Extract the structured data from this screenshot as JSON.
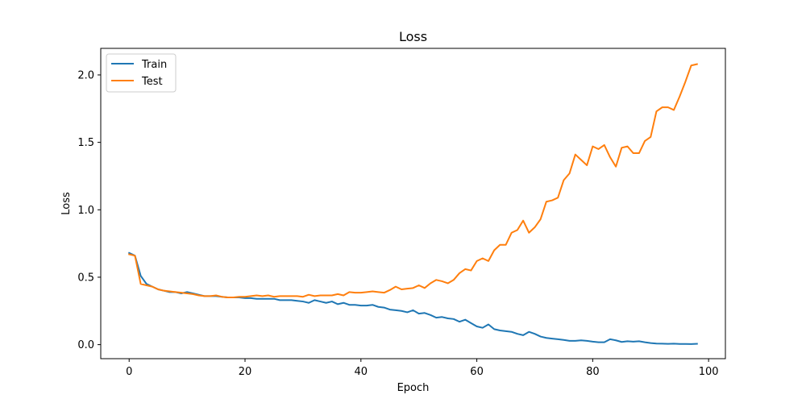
{
  "chart_data": {
    "type": "line",
    "title": "Loss",
    "xlabel": "Epoch",
    "ylabel": "Loss",
    "xlim": [
      -4.9,
      102.9
    ],
    "ylim": [
      -0.104,
      2.197
    ],
    "xticks": [
      0,
      20,
      40,
      60,
      80,
      100
    ],
    "yticks": [
      0.0,
      0.5,
      1.0,
      1.5,
      2.0
    ],
    "xtick_labels": [
      "0",
      "20",
      "40",
      "60",
      "80",
      "100"
    ],
    "ytick_labels": [
      "0.0",
      "0.5",
      "1.0",
      "1.5",
      "2.0"
    ],
    "grid": false,
    "legend_position": "upper-left",
    "series": [
      {
        "name": "Train",
        "color": "#1f77b4",
        "x": [
          0,
          1,
          2,
          3,
          4,
          5,
          6,
          7,
          8,
          9,
          10,
          11,
          12,
          13,
          14,
          15,
          16,
          17,
          18,
          19,
          20,
          21,
          22,
          23,
          24,
          25,
          26,
          27,
          28,
          29,
          30,
          31,
          32,
          33,
          34,
          35,
          36,
          37,
          38,
          39,
          40,
          41,
          42,
          43,
          44,
          45,
          46,
          47,
          48,
          49,
          50,
          51,
          52,
          53,
          54,
          55,
          56,
          57,
          58,
          59,
          60,
          61,
          62,
          63,
          64,
          65,
          66,
          67,
          68,
          69,
          70,
          71,
          72,
          73,
          74,
          75,
          76,
          77,
          78,
          79,
          80,
          81,
          82,
          83,
          84,
          85,
          86,
          87,
          88,
          89,
          90,
          91,
          92,
          93,
          94,
          95,
          96,
          97,
          98
        ],
        "values": [
          0.68,
          0.66,
          0.51,
          0.45,
          0.43,
          0.41,
          0.4,
          0.39,
          0.39,
          0.38,
          0.39,
          0.38,
          0.37,
          0.36,
          0.36,
          0.36,
          0.355,
          0.35,
          0.35,
          0.35,
          0.345,
          0.345,
          0.34,
          0.34,
          0.34,
          0.34,
          0.33,
          0.33,
          0.33,
          0.325,
          0.32,
          0.31,
          0.33,
          0.32,
          0.31,
          0.32,
          0.3,
          0.31,
          0.295,
          0.295,
          0.29,
          0.29,
          0.295,
          0.28,
          0.275,
          0.26,
          0.255,
          0.25,
          0.24,
          0.255,
          0.23,
          0.235,
          0.22,
          0.2,
          0.205,
          0.195,
          0.19,
          0.17,
          0.185,
          0.16,
          0.135,
          0.125,
          0.15,
          0.115,
          0.105,
          0.1,
          0.095,
          0.08,
          0.07,
          0.095,
          0.08,
          0.06,
          0.05,
          0.045,
          0.04,
          0.035,
          0.028,
          0.028,
          0.032,
          0.028,
          0.022,
          0.018,
          0.018,
          0.04,
          0.032,
          0.02,
          0.025,
          0.022,
          0.025,
          0.018,
          0.012,
          0.008,
          0.007,
          0.006,
          0.007,
          0.005,
          0.005,
          0.004,
          0.006
        ]
      },
      {
        "name": "Test",
        "color": "#ff7f0e",
        "x": [
          0,
          1,
          2,
          3,
          4,
          5,
          6,
          7,
          8,
          9,
          10,
          11,
          12,
          13,
          14,
          15,
          16,
          17,
          18,
          19,
          20,
          21,
          22,
          23,
          24,
          25,
          26,
          27,
          28,
          29,
          30,
          31,
          32,
          33,
          34,
          35,
          36,
          37,
          38,
          39,
          40,
          41,
          42,
          43,
          44,
          45,
          46,
          47,
          48,
          49,
          50,
          51,
          52,
          53,
          54,
          55,
          56,
          57,
          58,
          59,
          60,
          61,
          62,
          63,
          64,
          65,
          66,
          67,
          68,
          69,
          70,
          71,
          72,
          73,
          74,
          75,
          76,
          77,
          78,
          79,
          80,
          81,
          82,
          83,
          84,
          85,
          86,
          87,
          88,
          89,
          90,
          91,
          92,
          93,
          94,
          95,
          96,
          97,
          98
        ],
        "values": [
          0.67,
          0.66,
          0.45,
          0.44,
          0.43,
          0.41,
          0.4,
          0.395,
          0.39,
          0.385,
          0.38,
          0.375,
          0.365,
          0.36,
          0.36,
          0.365,
          0.355,
          0.35,
          0.35,
          0.355,
          0.355,
          0.36,
          0.365,
          0.36,
          0.365,
          0.355,
          0.36,
          0.36,
          0.36,
          0.36,
          0.355,
          0.37,
          0.36,
          0.365,
          0.365,
          0.365,
          0.375,
          0.365,
          0.39,
          0.385,
          0.385,
          0.39,
          0.395,
          0.39,
          0.385,
          0.405,
          0.43,
          0.41,
          0.415,
          0.42,
          0.44,
          0.42,
          0.455,
          0.48,
          0.47,
          0.455,
          0.48,
          0.53,
          0.56,
          0.55,
          0.62,
          0.64,
          0.62,
          0.7,
          0.74,
          0.74,
          0.83,
          0.85,
          0.92,
          0.83,
          0.87,
          0.93,
          1.06,
          1.07,
          1.09,
          1.22,
          1.27,
          1.41,
          1.37,
          1.33,
          1.47,
          1.45,
          1.48,
          1.39,
          1.32,
          1.46,
          1.47,
          1.42,
          1.42,
          1.51,
          1.54,
          1.73,
          1.76,
          1.76,
          1.74,
          1.84,
          1.95,
          2.07,
          2.08
        ]
      }
    ]
  }
}
